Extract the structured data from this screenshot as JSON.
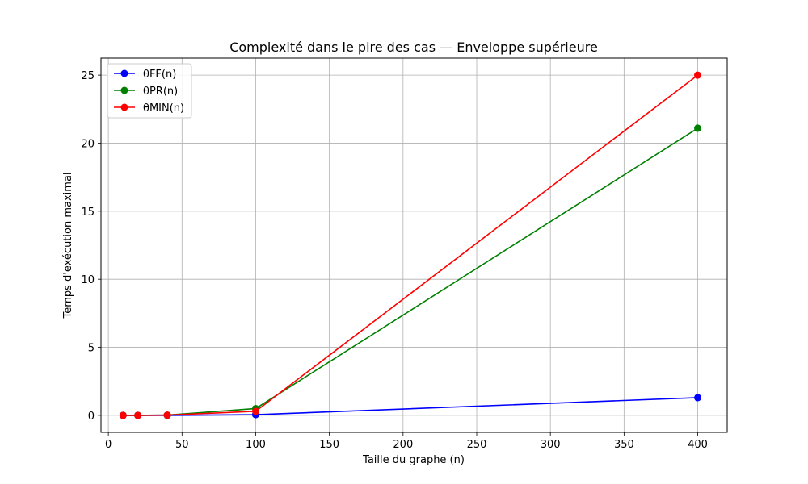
{
  "chart_data": {
    "type": "line",
    "title": "Complexité dans le pire des cas — Enveloppe supérieure",
    "xlabel": "Taille du graphe (n)",
    "ylabel": "Temps d'exécution maximal",
    "x": [
      10,
      20,
      40,
      100,
      400
    ],
    "xlim": [
      -5,
      420
    ],
    "ylim": [
      -1.25,
      26.25
    ],
    "xticks": [
      0,
      50,
      100,
      150,
      200,
      250,
      300,
      350,
      400
    ],
    "yticks": [
      0,
      5,
      10,
      15,
      20,
      25
    ],
    "grid": true,
    "legend_position": "top-left",
    "series": [
      {
        "name": "θFF(n)",
        "color": "#0000ff",
        "values": [
          0.0,
          0.0,
          0.0,
          0.05,
          1.3
        ]
      },
      {
        "name": "θPR(n)",
        "color": "#008000",
        "values": [
          0.0,
          0.0,
          0.02,
          0.5,
          21.1
        ]
      },
      {
        "name": "θMIN(n)",
        "color": "#ff0000",
        "values": [
          0.0,
          0.0,
          0.02,
          0.3,
          25.0
        ]
      }
    ]
  }
}
